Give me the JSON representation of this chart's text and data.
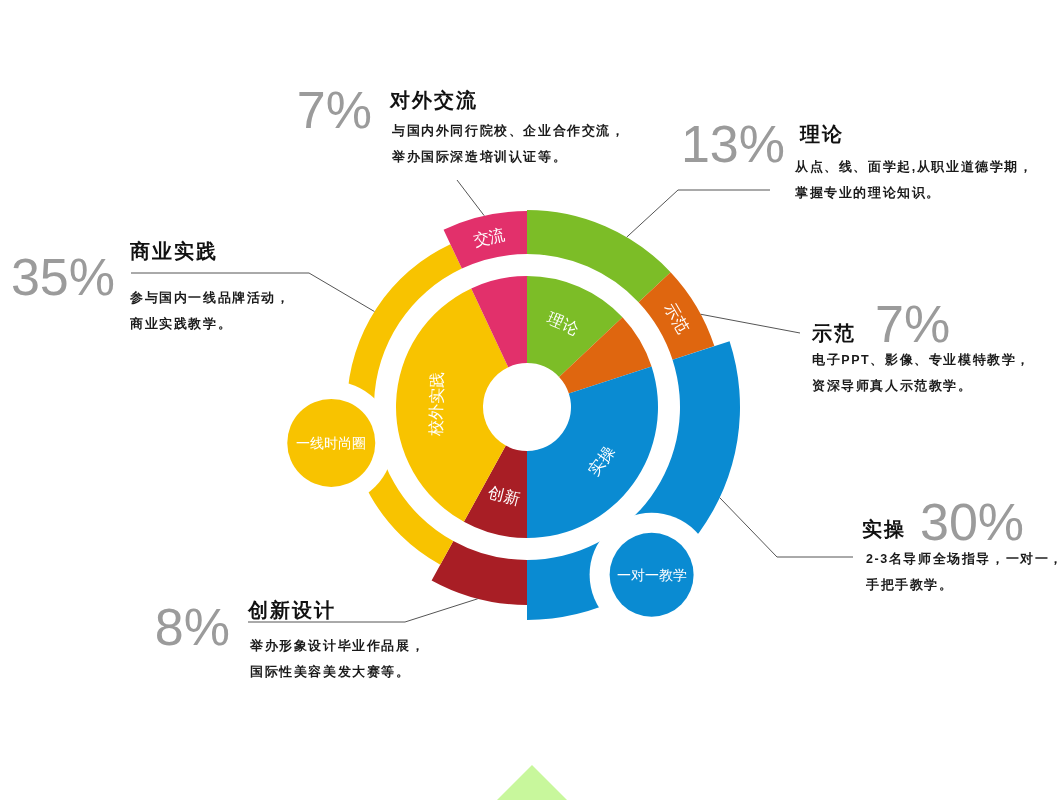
{
  "chart_data": {
    "type": "donut",
    "categories": [
      "理论",
      "示范",
      "实操",
      "创新",
      "校外实践",
      "交流"
    ],
    "series": [
      {
        "values": [
          13,
          7,
          30,
          8,
          35,
          7
        ]
      },
      {
        "values": [
          13,
          7,
          30,
          8,
          35,
          7
        ]
      }
    ],
    "colors": [
      "#7cbd27",
      "#df660f",
      "#0a8bd2",
      "#a81e25",
      "#f8c300",
      "#e2306b"
    ],
    "value_labels": [
      "13%",
      "7%",
      "30%",
      "8%",
      "35%",
      "7%"
    ],
    "annotations": [
      "理论",
      "从点、线、面学起,从职业道德学期，",
      "掌握专业的理论知识。",
      "示范",
      "电子PPT、影像、专业模特教学，",
      "资深导师真人示范教学。",
      "实操",
      "2-3名导师全场指导，一对一，",
      "手把手教学。",
      "创新设计",
      "举办形象设计毕业作品展，",
      "国际性美容美发大赛等。",
      "商业实践",
      "参与国内一线品牌活动，",
      "商业实践教学。",
      "对外交流",
      "与国内外同行院校、企业合作交流，",
      "举办国际深造培训认证等。",
      "一线时尚圈",
      "一对一教学"
    ]
  }
}
